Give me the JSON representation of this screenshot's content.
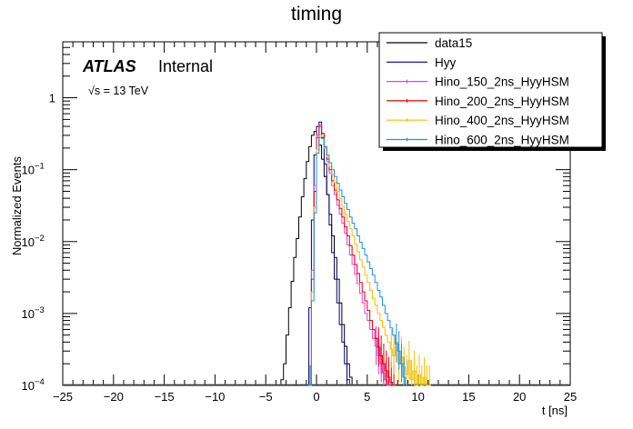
{
  "chart_data": {
    "type": "histogram",
    "title": "timing",
    "xlabel": "t [ns]",
    "ylabel": "Normalized Events",
    "xlim": [
      -25,
      25
    ],
    "ylim": [
      0.0001,
      6
    ],
    "yscale": "log",
    "x_ticks": [
      "−25",
      "−20",
      "−15",
      "−10",
      "−5",
      "0",
      "5",
      "10",
      "15",
      "20",
      "25"
    ],
    "y_ticks": [
      {
        "value": 0.0001,
        "base": "10",
        "exp": "−4"
      },
      {
        "value": 0.001,
        "base": "10",
        "exp": "−3"
      },
      {
        "value": 0.01,
        "base": "10",
        "exp": "−2"
      },
      {
        "value": 0.1,
        "base": "10",
        "exp": "−1"
      },
      {
        "value": 1,
        "base": "1",
        "exp": ""
      }
    ],
    "annotation": {
      "atlas": "ATLAS",
      "status": "Internal",
      "energy_prefix": "√",
      "energy": "s = 13 TeV"
    },
    "legend_position": "top-right",
    "series": [
      {
        "name": "data15",
        "color": "#000000",
        "style": "step",
        "x": [
          -3.5,
          -3.25,
          -3.0,
          -2.75,
          -2.5,
          -2.25,
          -2.0,
          -1.75,
          -1.5,
          -1.25,
          -1.0,
          -0.75,
          -0.5,
          -0.25,
          0.0,
          0.25,
          0.5,
          0.75,
          1.0,
          1.25,
          1.5,
          1.75,
          2.0,
          2.25,
          2.5,
          2.75,
          3.0,
          3.25,
          3.5
        ],
        "values": [
          0.00012,
          0.0002,
          0.0005,
          0.0012,
          0.0028,
          0.006,
          0.011,
          0.022,
          0.042,
          0.075,
          0.13,
          0.21,
          0.3,
          0.34,
          0.3,
          0.22,
          0.14,
          0.08,
          0.045,
          0.024,
          0.012,
          0.006,
          0.003,
          0.0014,
          0.0007,
          0.00035,
          0.0002,
          0.00013,
          0.0001
        ]
      },
      {
        "name": "Hyy",
        "color": "#000080",
        "style": "step",
        "x": [
          -0.75,
          -0.5,
          -0.25,
          0.0,
          0.25,
          0.5,
          0.75,
          1.0,
          1.25,
          1.5,
          1.75,
          2.0,
          2.25,
          2.5,
          2.75,
          3.0
        ],
        "values": [
          0.0012,
          0.02,
          0.16,
          0.4,
          0.46,
          0.28,
          0.12,
          0.045,
          0.017,
          0.007,
          0.003,
          0.0014,
          0.0007,
          0.0004,
          0.0002,
          0.00012
        ]
      },
      {
        "name": "Hino_150_2ns_HyyHSM",
        "color": "#e040e0",
        "style": "step",
        "x": [
          -0.75,
          -0.5,
          -0.25,
          0.0,
          0.25,
          0.5,
          0.75,
          1.0,
          1.25,
          1.5,
          1.75,
          2.0,
          2.25,
          2.5,
          2.75,
          3.0,
          3.25,
          3.5,
          3.75,
          4.0,
          4.25,
          4.5,
          4.75,
          5.0,
          5.25,
          5.5,
          5.75,
          6.0,
          6.25,
          6.5,
          6.75,
          7.0
        ],
        "values": [
          0.0001,
          0.004,
          0.06,
          0.3,
          0.42,
          0.32,
          0.2,
          0.13,
          0.09,
          0.06,
          0.045,
          0.032,
          0.024,
          0.018,
          0.013,
          0.009,
          0.0065,
          0.0048,
          0.0035,
          0.0026,
          0.0019,
          0.0014,
          0.001,
          0.0008,
          0.0006,
          0.00045,
          0.00035,
          0.00026,
          0.0002,
          0.00015,
          0.00012,
          0.0001
        ]
      },
      {
        "name": "Hino_200_2ns_HyyHSM",
        "color": "#e00000",
        "style": "step",
        "x": [
          -0.75,
          -0.5,
          -0.25,
          0.0,
          0.25,
          0.5,
          0.75,
          1.0,
          1.25,
          1.5,
          1.75,
          2.0,
          2.25,
          2.5,
          2.75,
          3.0,
          3.25,
          3.5,
          3.75,
          4.0,
          4.25,
          4.5,
          4.75,
          5.0,
          5.25,
          5.5,
          5.75,
          6.0,
          6.25,
          6.5,
          6.75,
          7.0,
          7.25,
          7.5
        ],
        "values": [
          0.0001,
          0.003,
          0.05,
          0.28,
          0.4,
          0.32,
          0.21,
          0.14,
          0.1,
          0.07,
          0.052,
          0.038,
          0.029,
          0.022,
          0.016,
          0.012,
          0.0088,
          0.0065,
          0.0048,
          0.0036,
          0.0027,
          0.002,
          0.0015,
          0.0011,
          0.0008,
          0.0006,
          0.00045,
          0.00034,
          0.00026,
          0.0002,
          0.00016,
          0.00013,
          0.00011,
          0.0001
        ]
      },
      {
        "name": "Hino_400_2ns_HyyHSM",
        "color": "#f0c000",
        "style": "step",
        "x": [
          -0.75,
          -0.5,
          -0.25,
          0.0,
          0.25,
          0.5,
          0.75,
          1.0,
          1.25,
          1.5,
          1.75,
          2.0,
          2.25,
          2.5,
          2.75,
          3.0,
          3.25,
          3.5,
          3.75,
          4.0,
          4.25,
          4.5,
          4.75,
          5.0,
          5.25,
          5.5,
          5.75,
          6.0,
          6.25,
          6.5,
          6.75,
          7.0,
          7.25,
          7.5,
          7.75,
          8.0,
          8.25,
          8.5,
          8.75,
          9.0,
          9.25,
          9.5,
          9.75,
          10.0,
          10.25,
          10.5,
          10.75,
          11.0
        ],
        "values": [
          0.0001,
          0.002,
          0.03,
          0.19,
          0.3,
          0.27,
          0.2,
          0.15,
          0.11,
          0.085,
          0.066,
          0.05,
          0.04,
          0.031,
          0.024,
          0.019,
          0.015,
          0.012,
          0.0092,
          0.0072,
          0.0056,
          0.0044,
          0.0034,
          0.0027,
          0.0021,
          0.0016,
          0.0013,
          0.001,
          0.0008,
          0.00064,
          0.0005,
          0.0004,
          0.00032,
          0.00026,
          0.0004,
          0.0002,
          0.00025,
          0.00018,
          0.00014,
          0.00022,
          0.00012,
          0.00016,
          0.0001,
          0.00014,
          0.0001,
          0.00013,
          0.0001,
          0.0001
        ]
      },
      {
        "name": "Hino_600_2ns_HyyHSM",
        "color": "#2090e0",
        "style": "step",
        "x": [
          -0.75,
          -0.5,
          -0.25,
          0.0,
          0.25,
          0.5,
          0.75,
          1.0,
          1.25,
          1.5,
          1.75,
          2.0,
          2.25,
          2.5,
          2.75,
          3.0,
          3.25,
          3.5,
          3.75,
          4.0,
          4.25,
          4.5,
          4.75,
          5.0,
          5.25,
          5.5,
          5.75,
          6.0,
          6.25,
          6.5,
          6.75,
          7.0,
          7.25,
          7.5,
          7.75,
          8.0,
          8.25,
          8.5
        ],
        "values": [
          0.0001,
          0.0015,
          0.025,
          0.17,
          0.28,
          0.27,
          0.21,
          0.16,
          0.125,
          0.1,
          0.08,
          0.065,
          0.052,
          0.042,
          0.034,
          0.028,
          0.022,
          0.018,
          0.015,
          0.012,
          0.0098,
          0.008,
          0.0065,
          0.0052,
          0.0042,
          0.0034,
          0.0027,
          0.0021,
          0.0017,
          0.0013,
          0.001,
          0.0008,
          0.00063,
          0.0005,
          0.00038,
          0.0003,
          0.0002,
          0.00013
        ]
      }
    ]
  }
}
